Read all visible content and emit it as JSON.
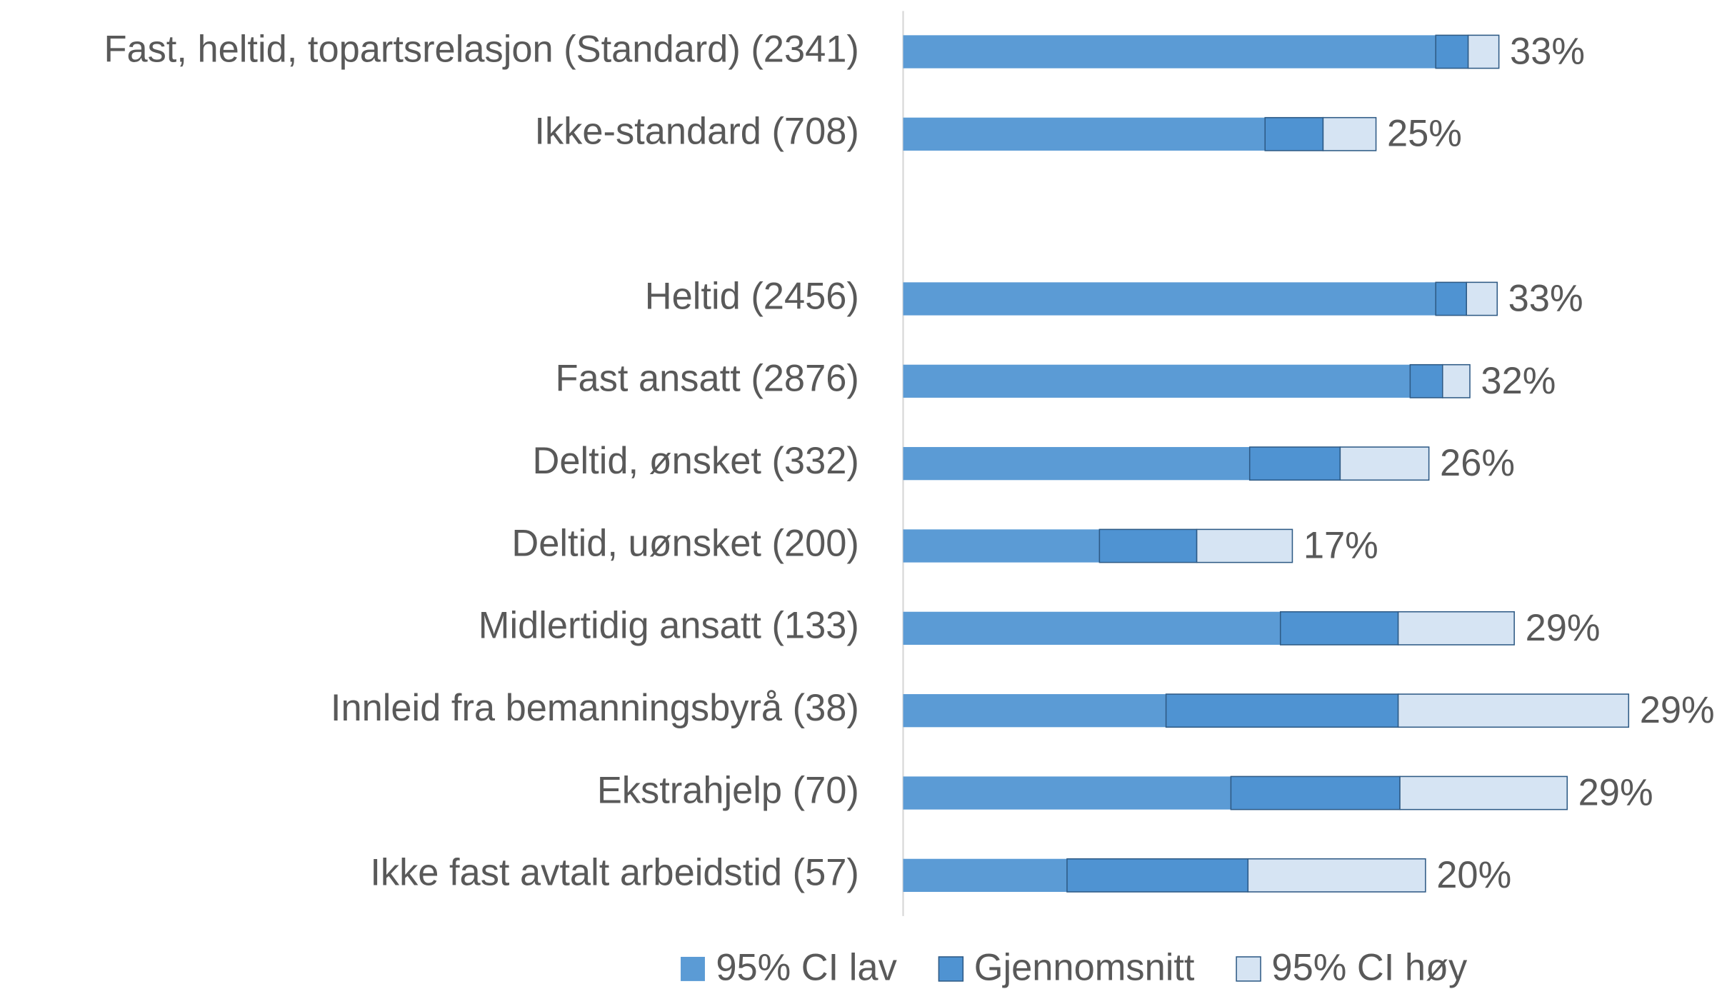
{
  "chart_data": {
    "type": "stacked-bar-horizontal",
    "categories": [
      "Fast, heltid, topartsrelasjon (Standard) (2341)",
      "Ikke-standard (708)",
      null,
      "Heltid (2456)",
      "Fast ansatt (2876)",
      "Deltid, ønsket (332)",
      "Deltid, uønsket (200)",
      "Midlertidig ansatt (133)",
      "Innleid fra bemanningsbyrå (38)",
      "Ekstrahjelp (70)",
      "Ikke fast avtalt arbeidstid (57)"
    ],
    "series": [
      {
        "name": "95% CI lav",
        "color": "#5b9bd5",
        "values": [
          31.2,
          21.2,
          null,
          31.2,
          29.7,
          20.3,
          11.5,
          22.1,
          15.4,
          19.2,
          9.6
        ]
      },
      {
        "name": "Gjennomsnitt",
        "color": "#4f93d2",
        "values": [
          1.9,
          3.4,
          null,
          1.8,
          1.9,
          5.3,
          5.7,
          6.9,
          13.6,
          9.9,
          10.6
        ],
        "value_labels": [
          "33%",
          "25%",
          null,
          "33%",
          "32%",
          "26%",
          "17%",
          "29%",
          "29%",
          "29%",
          "20%"
        ]
      },
      {
        "name": "95% CI høy",
        "color": "#d6e4f3",
        "values": [
          1.8,
          3.1,
          null,
          1.8,
          1.6,
          5.2,
          5.6,
          6.8,
          13.5,
          9.8,
          10.4
        ]
      }
    ],
    "xlim": [
      0,
      48
    ],
    "legend": "bottom"
  }
}
